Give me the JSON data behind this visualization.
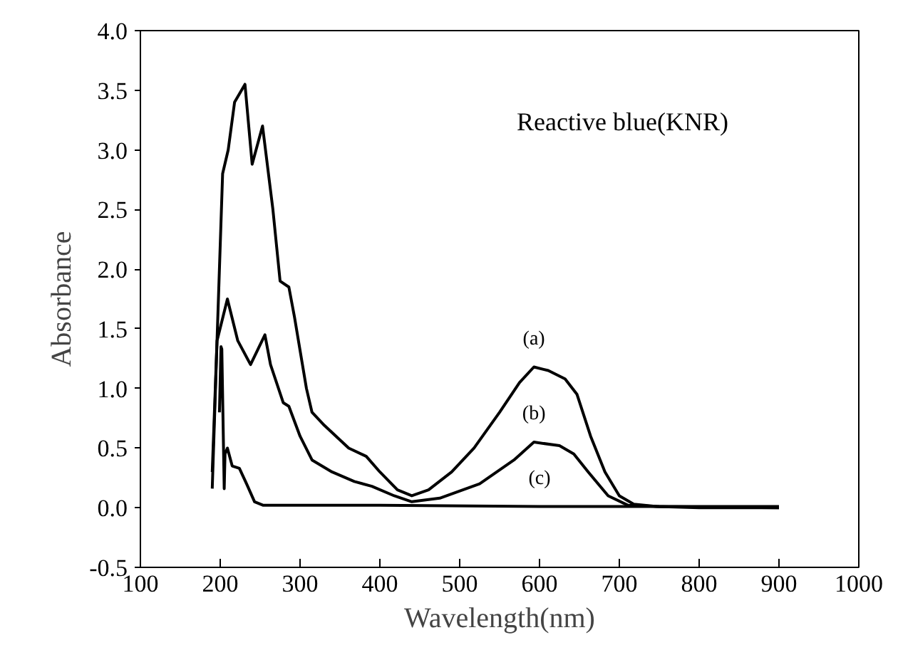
{
  "chart_data": {
    "type": "line",
    "xlabel": "Wavelength(nm)",
    "ylabel": "Absorbance",
    "xlim": [
      100,
      1000
    ],
    "ylim": [
      -0.5,
      4.0
    ],
    "xticks": [
      100,
      200,
      300,
      400,
      500,
      600,
      700,
      800,
      900,
      1000
    ],
    "yticks": [
      {
        "value": -0.5,
        "label": "-0.5"
      },
      {
        "value": 0,
        "label": "0.0"
      },
      0.5,
      {
        "value": 1,
        "label": "1.0"
      },
      1.5,
      {
        "value": 2,
        "label": "2.0"
      },
      2.5,
      {
        "value": 3,
        "label": "3.0"
      },
      3.5,
      {
        "value": 4,
        "label": "4.0"
      }
    ],
    "grid": false,
    "series": [
      {
        "name": "(a)",
        "color": "#000000",
        "x": [
          190,
          196,
          203,
          210,
          218,
          231,
          240,
          253,
          266,
          275,
          286,
          293,
          308,
          315,
          329,
          361,
          383,
          400,
          422,
          440,
          461,
          490,
          518,
          550,
          575,
          593,
          611,
          632,
          647,
          664,
          682,
          700,
          718,
          747,
          800,
          900
        ],
        "values": [
          0.16,
          1.4,
          2.8,
          3.0,
          3.4,
          3.55,
          2.88,
          3.2,
          2.5,
          1.9,
          1.85,
          1.6,
          1.0,
          0.8,
          0.7,
          0.5,
          0.43,
          0.3,
          0.15,
          0.1,
          0.15,
          0.3,
          0.5,
          0.8,
          1.05,
          1.18,
          1.15,
          1.08,
          0.95,
          0.6,
          0.3,
          0.1,
          0.03,
          0.01,
          0.0,
          0.0
        ]
      },
      {
        "name": "(b)",
        "color": "#000000",
        "x": [
          190,
          196,
          209,
          222,
          238,
          256,
          263,
          279,
          286,
          300,
          315,
          340,
          368,
          390,
          418,
          440,
          475,
          525,
          568,
          593,
          625,
          643,
          661,
          686,
          711,
          750,
          900
        ],
        "values": [
          0.3,
          1.4,
          1.75,
          1.4,
          1.2,
          1.45,
          1.2,
          0.88,
          0.85,
          0.6,
          0.4,
          0.3,
          0.22,
          0.18,
          0.1,
          0.05,
          0.08,
          0.2,
          0.4,
          0.55,
          0.52,
          0.45,
          0.3,
          0.1,
          0.02,
          0.01,
          0.0
        ]
      },
      {
        "name": "(c)",
        "color": "#000000",
        "x": [
          199,
          201,
          202,
          205,
          206,
          209,
          215,
          224,
          233,
          243,
          254,
          400,
          600,
          900
        ],
        "values": [
          0.8,
          1.35,
          1.33,
          0.16,
          0.45,
          0.5,
          0.35,
          0.33,
          0.2,
          0.05,
          0.02,
          0.02,
          0.01,
          0.01
        ]
      }
    ],
    "annotations": [
      "Reactive blue(KNR)"
    ]
  }
}
